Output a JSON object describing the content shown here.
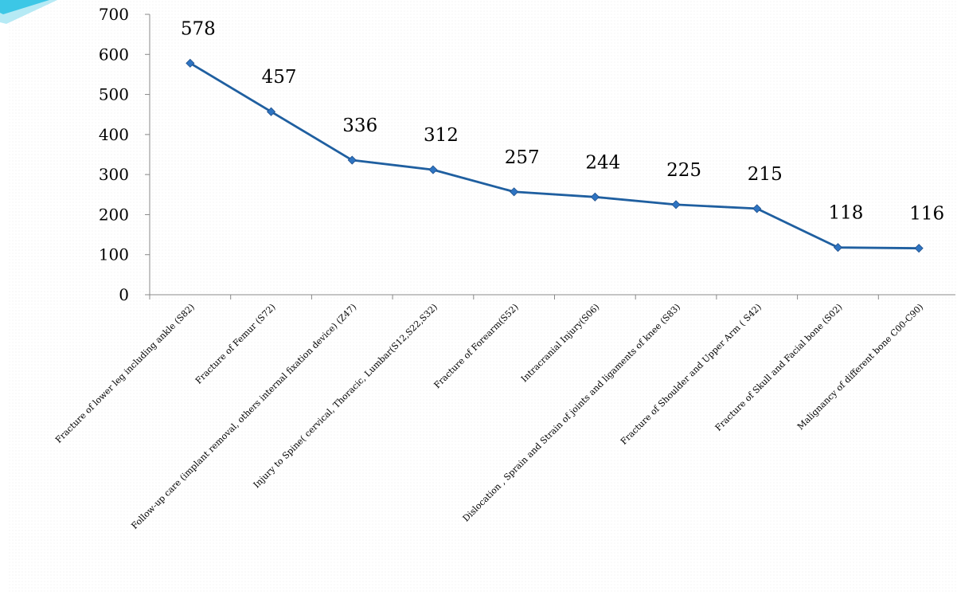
{
  "chart_data": {
    "type": "line",
    "title": "",
    "xlabel": "",
    "ylabel": "",
    "ylim": [
      0,
      700
    ],
    "yticks": [
      0,
      100,
      200,
      300,
      400,
      500,
      600,
      700
    ],
    "ytick_labels": [
      "0",
      "100",
      "200",
      "300",
      "400",
      "500",
      "600",
      "700"
    ],
    "grid": false,
    "categories": [
      "Fracture of lower leg including ankle (S82)",
      "Fracture of Femur (S72)",
      "Follow-up care (implant removal, others internal fixation device) (Z47)",
      "Injury to Spine( cervical, Thoracic, Lumbar(S12,S22,S32)",
      "Fracture of Forearm(S52)",
      "Intracranial Injury(S06)",
      "Dislocation , Sprain and Strain of joints and ligaments of knee (S83)",
      "Fracture of Shoulder and Upper Arm ( S42)",
      "Fracture of Skull and Facial bone (S02)",
      "Malignancy of different bone C00-C90)"
    ],
    "series": [
      {
        "values": [
          578,
          457,
          336,
          312,
          257,
          244,
          225,
          215,
          118,
          116
        ],
        "color": "#1f5fa0",
        "marker": "diamond",
        "data_labels": [
          "578",
          "457",
          "336",
          "312",
          "257",
          "244",
          "225",
          "215",
          "118",
          "116"
        ]
      }
    ],
    "decoration_colors": [
      "#3cc7e6",
      "#9ee3f2"
    ]
  }
}
